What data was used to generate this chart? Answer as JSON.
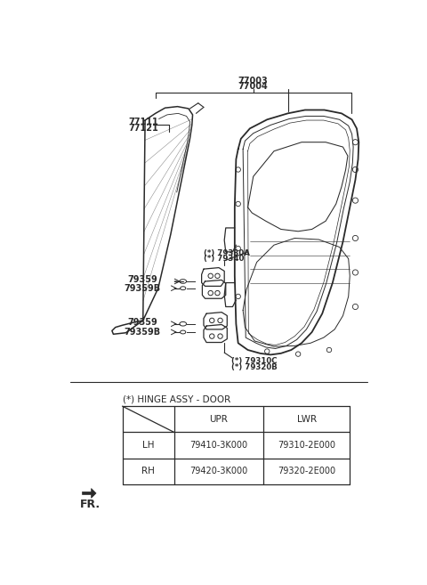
{
  "bg_color": "#ffffff",
  "fig_width": 4.8,
  "fig_height": 6.57,
  "dpi": 100,
  "line_color": "#2a2a2a",
  "text_color": "#2a2a2a",
  "label_fontsize": 7.0,
  "small_fontsize": 6.2,
  "table_title": "(*) HINGE ASSY - DOOR",
  "table_rows": [
    [
      "",
      "UPR",
      "LWR"
    ],
    [
      "LH",
      "79410-3K000",
      "79310-2E000"
    ],
    [
      "RH",
      "79420-3K000",
      "79320-2E000"
    ]
  ]
}
